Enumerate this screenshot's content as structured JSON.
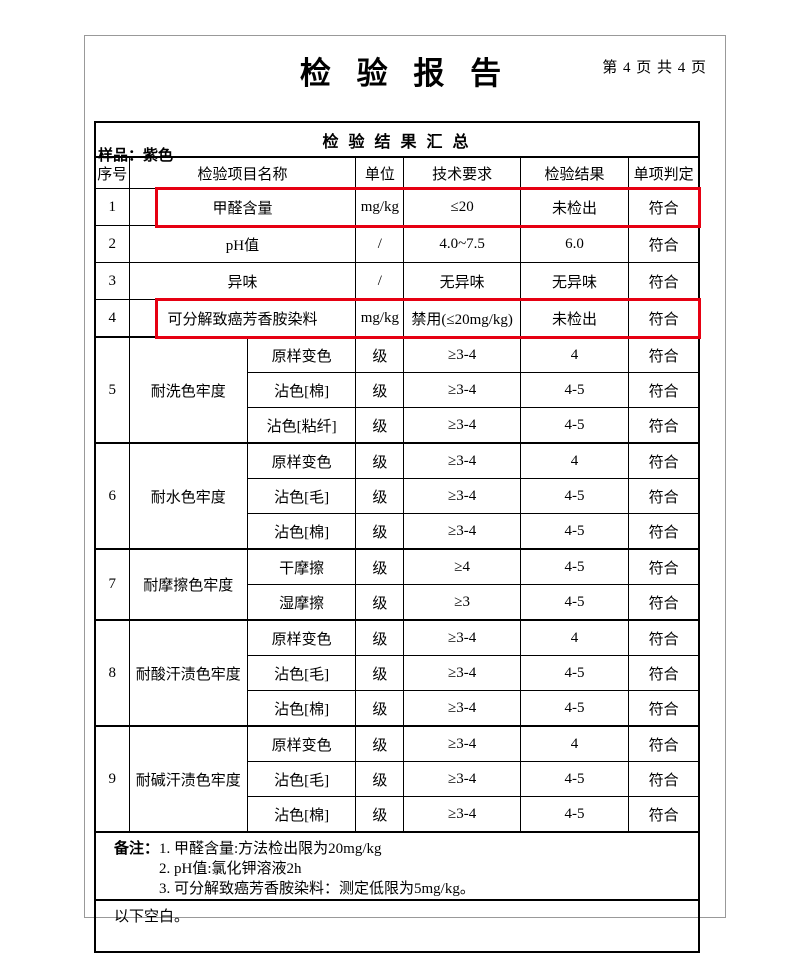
{
  "page": {
    "title": "检 验 报 告",
    "page_indicator": "第 4 页 共 4 页",
    "sample_label": "样品：",
    "sample_value": "紫色"
  },
  "table": {
    "caption": "检 验 结 果 汇 总",
    "headers": {
      "seq": "序号",
      "item": "检验项目名称",
      "unit": "单位",
      "requirement": "技术要求",
      "result": "检验结果",
      "judgement": "单项判定"
    },
    "simple_rows": [
      {
        "seq": "1",
        "item": "甲醛含量",
        "unit": "mg/kg",
        "requirement": "≤20",
        "result": "未检出",
        "judgement": "符合",
        "highlight": true
      },
      {
        "seq": "2",
        "item": "pH值",
        "unit": "/",
        "requirement": "4.0~7.5",
        "result": "6.0",
        "judgement": "符合",
        "highlight": false
      },
      {
        "seq": "3",
        "item": "异味",
        "unit": "/",
        "requirement": "无异味",
        "result": "无异味",
        "judgement": "符合",
        "highlight": false
      },
      {
        "seq": "4",
        "item": "可分解致癌芳香胺染料",
        "unit": "mg/kg",
        "requirement": "禁用(≤20mg/kg)",
        "result": "未检出",
        "judgement": "符合",
        "highlight": true
      }
    ],
    "group_rows": [
      {
        "seq": "5",
        "name": "耐洗色牢度",
        "sub": [
          {
            "item": "原样变色",
            "unit": "级",
            "requirement": "≥3-4",
            "result": "4",
            "judgement": "符合"
          },
          {
            "item": "沾色[棉]",
            "unit": "级",
            "requirement": "≥3-4",
            "result": "4-5",
            "judgement": "符合"
          },
          {
            "item": "沾色[粘纤]",
            "unit": "级",
            "requirement": "≥3-4",
            "result": "4-5",
            "judgement": "符合"
          }
        ]
      },
      {
        "seq": "6",
        "name": "耐水色牢度",
        "sub": [
          {
            "item": "原样变色",
            "unit": "级",
            "requirement": "≥3-4",
            "result": "4",
            "judgement": "符合"
          },
          {
            "item": "沾色[毛]",
            "unit": "级",
            "requirement": "≥3-4",
            "result": "4-5",
            "judgement": "符合"
          },
          {
            "item": "沾色[棉]",
            "unit": "级",
            "requirement": "≥3-4",
            "result": "4-5",
            "judgement": "符合"
          }
        ]
      },
      {
        "seq": "7",
        "name": "耐摩擦色牢度",
        "sub": [
          {
            "item": "干摩擦",
            "unit": "级",
            "requirement": "≥4",
            "result": "4-5",
            "judgement": "符合"
          },
          {
            "item": "湿摩擦",
            "unit": "级",
            "requirement": "≥3",
            "result": "4-5",
            "judgement": "符合"
          }
        ]
      },
      {
        "seq": "8",
        "name": "耐酸汗渍色牢度",
        "sub": [
          {
            "item": "原样变色",
            "unit": "级",
            "requirement": "≥3-4",
            "result": "4",
            "judgement": "符合"
          },
          {
            "item": "沾色[毛]",
            "unit": "级",
            "requirement": "≥3-4",
            "result": "4-5",
            "judgement": "符合"
          },
          {
            "item": "沾色[棉]",
            "unit": "级",
            "requirement": "≥3-4",
            "result": "4-5",
            "judgement": "符合"
          }
        ]
      },
      {
        "seq": "9",
        "name": "耐碱汗渍色牢度",
        "sub": [
          {
            "item": "原样变色",
            "unit": "级",
            "requirement": "≥3-4",
            "result": "4",
            "judgement": "符合"
          },
          {
            "item": "沾色[毛]",
            "unit": "级",
            "requirement": "≥3-4",
            "result": "4-5",
            "judgement": "符合"
          },
          {
            "item": "沾色[棉]",
            "unit": "级",
            "requirement": "≥3-4",
            "result": "4-5",
            "judgement": "符合"
          }
        ]
      }
    ],
    "notes": {
      "label": "备注：",
      "lines": [
        "1. 甲醛含量:方法检出限为20mg/kg",
        "2. pH值:氯化钾溶液2h",
        "3. 可分解致癌芳香胺染料：测定低限为5mg/kg。"
      ]
    },
    "footer": "以下空白。"
  },
  "colors": {
    "highlight_border": "#e60012",
    "table_border": "#000000",
    "page_border": "#999999"
  }
}
